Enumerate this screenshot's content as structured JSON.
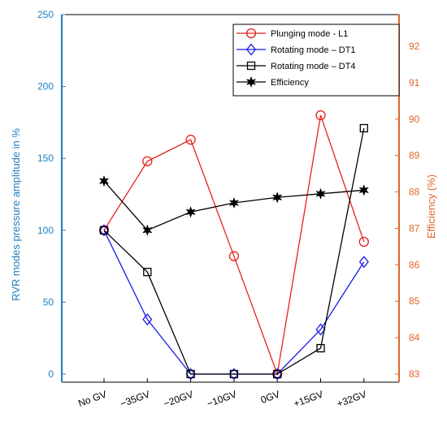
{
  "chart_data": {
    "type": "line",
    "categories": [
      "No GV",
      "−35GV",
      "−20GV",
      "−10GV",
      "0GV",
      "+15GV",
      "+32GV"
    ],
    "y_left": {
      "label": "RVR modes pressure amplitude in %",
      "ylim": [
        0,
        250
      ],
      "ticks": [
        "0",
        "50",
        "100",
        "150",
        "200",
        "250"
      ],
      "color": "#1f7fbf"
    },
    "y_right": {
      "label": "Efficiency (%)",
      "ylim": [
        83,
        93
      ],
      "ticks": [
        "83",
        "84",
        "85",
        "86",
        "87",
        "88",
        "89",
        "90",
        "91",
        "92"
      ],
      "color": "#e0662a"
    },
    "series": [
      {
        "name": "Plunging mode  - L1",
        "axis": "left",
        "marker": "circle",
        "color": "#e8201a",
        "values": [
          100,
          148,
          163,
          82,
          0,
          180,
          92
        ]
      },
      {
        "name": "Rotating mode – DT1",
        "axis": "left",
        "marker": "diamond",
        "color": "#1a1aee",
        "values": [
          100,
          38,
          0,
          0,
          0,
          31,
          78
        ]
      },
      {
        "name": "Rotating mode – DT4",
        "axis": "left",
        "marker": "square",
        "color": "#000000",
        "values": [
          100,
          71,
          0,
          0,
          0,
          18,
          171
        ]
      },
      {
        "name": "Efficiency",
        "axis": "right",
        "marker": "star",
        "color": "#000000",
        "values": [
          88.3,
          86.95,
          87.45,
          87.7,
          87.85,
          87.95,
          88.05
        ]
      }
    ],
    "grid": false,
    "legend": "top-right"
  }
}
